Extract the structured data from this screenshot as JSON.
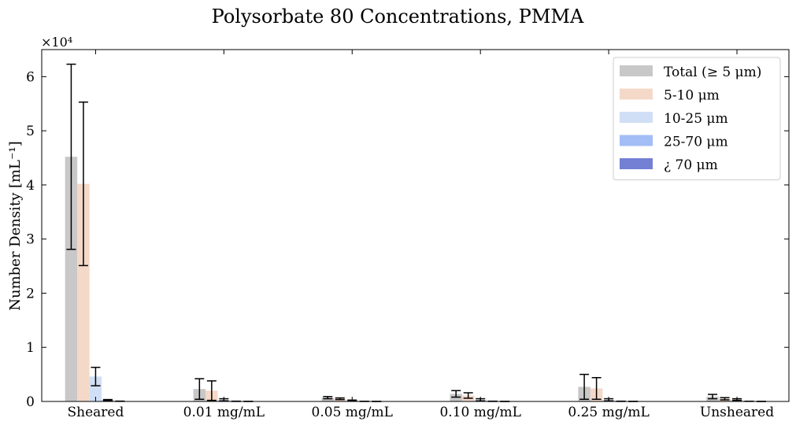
{
  "chart_data": {
    "type": "bar",
    "title": "Polysorbate 80 Concentrations, PMMA",
    "xlabel": "",
    "ylabel": "Number Density [mL⁻¹]",
    "y_multiplier_label": "×10⁴",
    "ylim": [
      0,
      65000
    ],
    "yticks": [
      0,
      10000,
      20000,
      30000,
      40000,
      50000,
      60000
    ],
    "ytick_labels": [
      "0",
      "1",
      "2",
      "3",
      "4",
      "5",
      "6"
    ],
    "grid": false,
    "legend_position": "top-right",
    "categories": [
      "Sheared",
      "0.01 mg/mL",
      "0.05 mg/mL",
      "0.10 mg/mL",
      "0.25 mg/mL",
      "Unsheared"
    ],
    "series": [
      {
        "name": "Total (≥ 5 μm)",
        "color": "#c8c8c8",
        "values": [
          45200,
          2300,
          700,
          1400,
          2700,
          900
        ],
        "errors": [
          17100,
          1900,
          200,
          600,
          2300,
          400
        ]
      },
      {
        "name": "5-10 μm",
        "color": "#f4d8c8",
        "values": [
          40200,
          2000,
          500,
          1100,
          2400,
          500
        ],
        "errors": [
          15100,
          1800,
          150,
          500,
          2000,
          200
        ]
      },
      {
        "name": "10-25 μm",
        "color": "#d0dff5",
        "values": [
          4600,
          300,
          150,
          300,
          300,
          350
        ],
        "errors": [
          1700,
          200,
          100,
          200,
          200,
          150
        ]
      },
      {
        "name": "25-70 μm",
        "color": "#a3bdf6",
        "values": [
          250,
          30,
          20,
          30,
          30,
          30
        ],
        "errors": [
          100,
          20,
          10,
          20,
          20,
          10
        ]
      },
      {
        "name": "¿ 70 μm",
        "color": "#7480d4",
        "values": [
          40,
          10,
          5,
          5,
          10,
          5
        ],
        "errors": [
          20,
          5,
          5,
          5,
          5,
          5
        ]
      }
    ]
  }
}
